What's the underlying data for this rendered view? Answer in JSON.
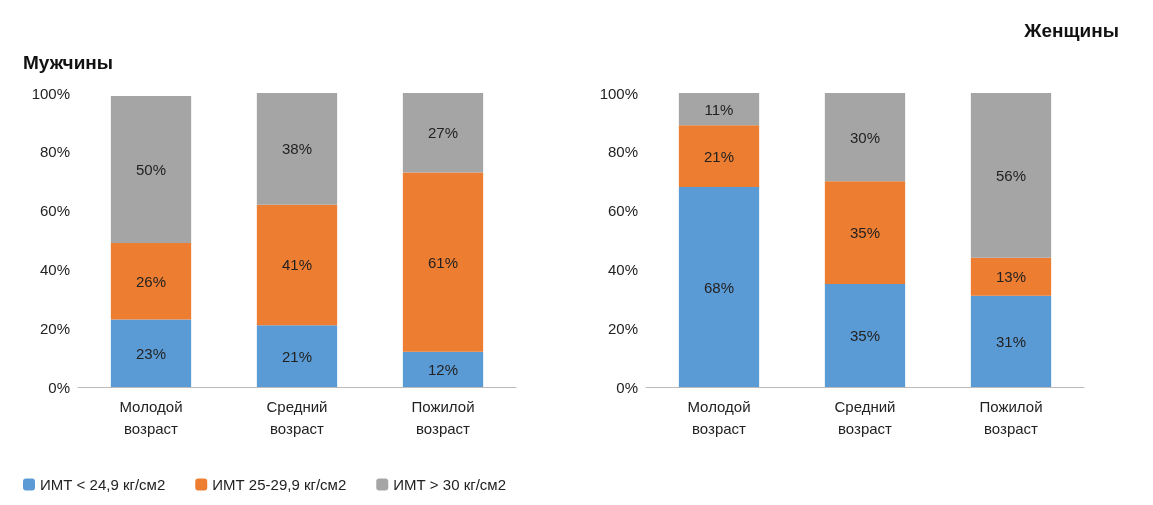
{
  "chart_data": [
    {
      "type": "bar",
      "title": "Мужчины",
      "stacked": true,
      "categories": [
        "Молодой\nвозраст",
        "Средний\nвозраст",
        "Пожилой\nвозраст"
      ],
      "series": [
        {
          "name": "ИМТ < 24,9 кг/см2",
          "color": "#5b9bd5",
          "values": [
            23,
            21,
            12
          ],
          "value_labels": [
            "23%",
            "21%",
            "12%"
          ]
        },
        {
          "name": "ИМТ 25-29,9 кг/см2",
          "color": "#ed7d31",
          "values": [
            26,
            41,
            61
          ],
          "value_labels": [
            "26%",
            "41%",
            "61%"
          ]
        },
        {
          "name": "ИМТ > 30 кг/см2",
          "color": "#a5a5a5",
          "values": [
            50,
            38,
            27
          ],
          "value_labels": [
            "50%",
            "38%",
            "27%"
          ]
        }
      ],
      "ylim": [
        0,
        100
      ],
      "yticks": [
        {
          "value": 0,
          "label": "0%"
        },
        {
          "value": 20,
          "label": "20%"
        },
        {
          "value": 40,
          "label": "40%"
        },
        {
          "value": 60,
          "label": "60%"
        },
        {
          "value": 80,
          "label": "80%"
        },
        {
          "value": 100,
          "label": "100%"
        }
      ],
      "grid": false,
      "legend": "bottom"
    },
    {
      "type": "bar",
      "title": "Женщины",
      "stacked": true,
      "categories": [
        "Молодой\nвозраст",
        "Средний\nвозраст",
        "Пожилой\nвозраст"
      ],
      "series": [
        {
          "color": "#5b9bd5",
          "values": [
            68,
            35,
            31
          ],
          "value_labels": [
            "68%",
            "35%",
            "31%"
          ]
        },
        {
          "color": "#ed7d31",
          "values": [
            21,
            35,
            13
          ],
          "value_labels": [
            "21%",
            "35%",
            "13%"
          ]
        },
        {
          "color": "#a5a5a5",
          "values": [
            11,
            30,
            56
          ],
          "value_labels": [
            "11%",
            "30%",
            "56%"
          ]
        }
      ],
      "ylim": [
        0,
        100
      ],
      "yticks": [
        {
          "value": 0,
          "label": "0%"
        },
        {
          "value": 20,
          "label": "20%"
        },
        {
          "value": 40,
          "label": "40%"
        },
        {
          "value": 60,
          "label": "60%"
        },
        {
          "value": 80,
          "label": "80%"
        },
        {
          "value": 100,
          "label": "100%"
        }
      ],
      "grid": false
    }
  ]
}
